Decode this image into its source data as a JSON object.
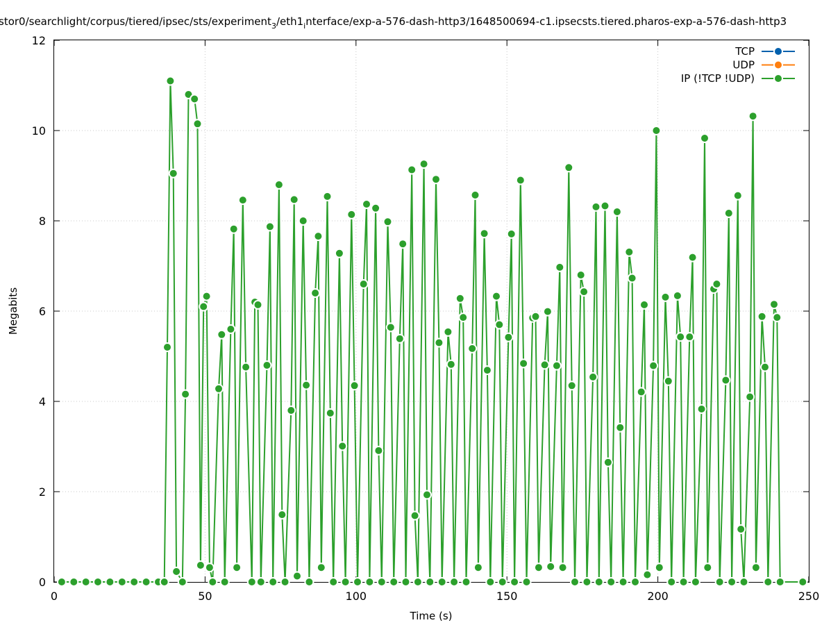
{
  "chart_data": {
    "type": "line",
    "title": "stor0/searchlight/corpus/tiered/ipsec/sts/experiment",
    "title_sub": "3",
    "title_mid": "/eth1",
    "title_sub2": "i",
    "title_end": "nterface/exp-a-576-dash-http3/1648500694-c1.ipsecsts.tiered.pharos-exp-a-576-dash-http3",
    "xlabel": "Time (s)",
    "ylabel": "Megabits",
    "xlim": [
      0,
      250
    ],
    "ylim": [
      0,
      12
    ],
    "xticks": [
      "0",
      "50",
      "100",
      "150",
      "200",
      "250"
    ],
    "yticks": [
      "0",
      "2",
      "4",
      "6",
      "8",
      "10",
      "12"
    ],
    "grid": true,
    "legend_position": "top-right",
    "series": [
      {
        "name": "TCP",
        "color": "#0060ad",
        "x": [],
        "y": []
      },
      {
        "name": "UDP",
        "color": "#ff7f0e",
        "x": [],
        "y": []
      },
      {
        "name": "IP (!TCP  !UDP)",
        "color": "#2ca02c",
        "x": [
          2.5,
          6.5,
          10.5,
          14.5,
          18.5,
          22.5,
          26.5,
          30.5,
          34.5,
          36.5,
          37.5,
          38.5,
          39.5,
          40.5,
          42.5,
          43.5,
          44.5,
          46.5,
          47.5,
          48.5,
          49.5,
          50.5,
          51.5,
          52.5,
          54.5,
          55.5,
          56.5,
          58.5,
          59.5,
          60.5,
          62.5,
          63.5,
          65.5,
          66.5,
          67.5,
          68.5,
          70.5,
          71.5,
          72.5,
          74.5,
          75.5,
          76.5,
          78.5,
          79.5,
          80.5,
          82.5,
          83.5,
          84.5,
          86.5,
          87.5,
          88.5,
          90.5,
          91.5,
          92.5,
          94.5,
          95.5,
          96.5,
          98.5,
          99.5,
          100.5,
          102.5,
          103.5,
          104.5,
          106.5,
          107.5,
          108.5,
          110.5,
          111.5,
          112.5,
          114.5,
          115.5,
          116.5,
          118.5,
          119.5,
          120.5,
          122.5,
          123.5,
          124.5,
          126.5,
          127.5,
          128.5,
          130.5,
          131.5,
          132.5,
          134.5,
          135.5,
          136.5,
          138.5,
          139.5,
          140.5,
          142.5,
          143.5,
          144.5,
          146.5,
          147.5,
          148.5,
          150.5,
          151.5,
          152.5,
          154.5,
          155.5,
          156.5,
          158.5,
          159.5,
          160.5,
          162.5,
          163.5,
          164.5,
          166.5,
          167.5,
          168.5,
          170.5,
          171.5,
          172.5,
          174.5,
          175.5,
          176.5,
          178.5,
          179.5,
          180.5,
          182.5,
          183.5,
          184.5,
          186.5,
          187.5,
          188.5,
          190.5,
          191.5,
          192.5,
          194.5,
          195.5,
          196.5,
          198.5,
          199.5,
          200.5,
          202.5,
          203.5,
          204.5,
          206.5,
          207.5,
          208.5,
          210.5,
          211.5,
          212.5,
          214.5,
          215.5,
          216.5,
          218.5,
          219.5,
          220.5,
          222.5,
          223.5,
          224.5,
          226.5,
          227.5,
          228.5,
          230.5,
          231.5,
          232.5,
          234.5,
          235.5,
          236.5,
          238.5,
          239.5,
          240.5,
          248.0
        ],
        "y": [
          0,
          0,
          0,
          0,
          0,
          0,
          0,
          0,
          0,
          0,
          5.2,
          11.1,
          9.05,
          0.23,
          0,
          4.16,
          10.8,
          10.7,
          10.15,
          0.37,
          6.1,
          6.33,
          0.32,
          0,
          4.28,
          5.48,
          0,
          5.6,
          7.82,
          0.32,
          8.46,
          4.76,
          0,
          6.2,
          6.14,
          0,
          4.8,
          7.87,
          0,
          8.8,
          1.49,
          0,
          3.8,
          8.47,
          0.13,
          8.0,
          4.36,
          0,
          6.4,
          7.66,
          0.32,
          8.54,
          3.74,
          0,
          7.28,
          3.01,
          0,
          8.14,
          4.35,
          0,
          6.6,
          8.37,
          0,
          8.28,
          2.91,
          0,
          7.98,
          5.64,
          0,
          5.39,
          7.49,
          0,
          9.13,
          1.47,
          0,
          9.26,
          1.93,
          0,
          8.92,
          5.3,
          0,
          5.54,
          4.82,
          0,
          6.28,
          5.86,
          0,
          5.17,
          8.57,
          0.32,
          7.72,
          4.69,
          0,
          6.33,
          5.7,
          0,
          5.42,
          7.71,
          0,
          8.9,
          4.84,
          0,
          5.85,
          5.88,
          0.32,
          4.81,
          5.99,
          0.34,
          4.79,
          6.97,
          0.32,
          9.18,
          4.35,
          0,
          6.8,
          6.43,
          0,
          4.54,
          8.31,
          0,
          8.33,
          2.65,
          0,
          8.2,
          3.42,
          0,
          7.31,
          6.73,
          0,
          4.21,
          6.14,
          0.16,
          4.79,
          10.0,
          0.32,
          6.31,
          4.45,
          0,
          6.34,
          5.43,
          0,
          5.43,
          7.19,
          0,
          3.83,
          9.83,
          0.32,
          6.49,
          6.6,
          0,
          4.47,
          8.17,
          0,
          8.56,
          1.17,
          0,
          4.1,
          10.32,
          0.32,
          5.88,
          4.76,
          0,
          6.15,
          5.86,
          0,
          0
        ]
      }
    ]
  }
}
